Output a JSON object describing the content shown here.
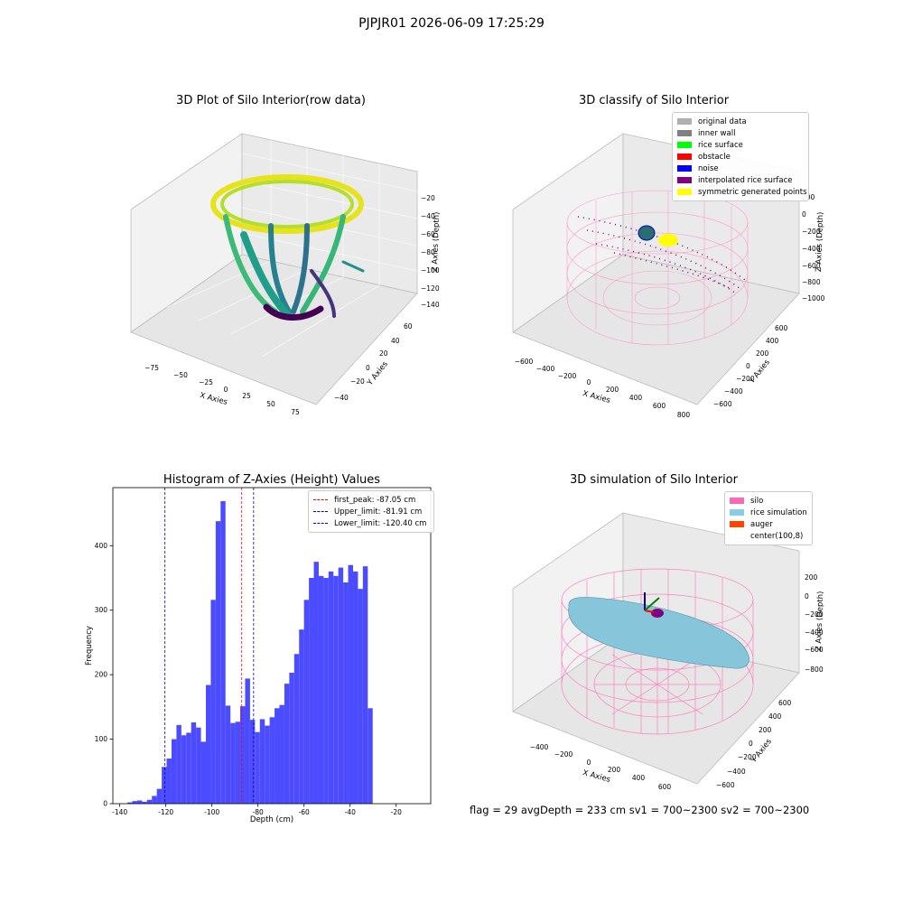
{
  "suptitle": "PJPJR01 2026-06-09 17:25:29",
  "footer": "flag = 29  avgDepth = 233 cm  sv1 = 700~2300  sv2 = 700~2300",
  "chart_data": [
    {
      "type": "scatter",
      "subtype": "3d-point-cloud",
      "title": "3D Plot of Silo Interior(row data)",
      "xlabel": "X Axies",
      "ylabel": "Y Axies",
      "zlabel": "Z Axies (Depth)",
      "x_ticks": [
        "−75",
        "−50",
        "−25",
        "0",
        "25",
        "50",
        "75"
      ],
      "y_ticks": [
        "−40",
        "−20",
        "0",
        "20",
        "40",
        "60"
      ],
      "z_ticks": [
        "−20",
        "−40",
        "−60",
        "−80",
        "−100",
        "−120",
        "−140"
      ],
      "colormap": "viridis"
    },
    {
      "type": "scatter",
      "subtype": "3d-classification",
      "title": "3D classify of Silo Interior",
      "xlabel": "X Axies",
      "ylabel": "Y Axies",
      "zlabel": "Z Axies (Depth)",
      "x_ticks": [
        "−600",
        "−400",
        "−200",
        "0",
        "200",
        "400",
        "600",
        "800"
      ],
      "y_ticks": [
        "−600",
        "−400",
        "−200",
        "0",
        "200",
        "400",
        "600"
      ],
      "z_ticks": [
        "200",
        "0",
        "−200",
        "−400",
        "−600",
        "−800",
        "−1000"
      ],
      "legend": [
        {
          "label": "original data",
          "color": "#b0b0b0"
        },
        {
          "label": "inner wall",
          "color": "#808080"
        },
        {
          "label": "rice surface",
          "color": "#00ff00"
        },
        {
          "label": "obstacle",
          "color": "#ff0000"
        },
        {
          "label": "noise",
          "color": "#0000ff"
        },
        {
          "label": "interpolated rice surface",
          "color": "#800080"
        },
        {
          "label": "symmetric generated points",
          "color": "#ffff00"
        }
      ]
    },
    {
      "type": "bar",
      "subtype": "histogram",
      "title": "Histogram of Z-Axies (Height) Values",
      "xlabel": "Depth (cm)",
      "ylabel": "Frequency",
      "xlim": [
        -143,
        -5
      ],
      "ylim": [
        0,
        490
      ],
      "x_ticks": [
        -140,
        -120,
        -100,
        -80,
        -60,
        -40,
        -20
      ],
      "y_ticks": [
        0,
        100,
        200,
        300,
        400
      ],
      "bin_start": -136.7,
      "bin_width": 2.13,
      "values": [
        2,
        4,
        5,
        3,
        6,
        12,
        23,
        57,
        70,
        100,
        122,
        106,
        110,
        126,
        118,
        96,
        184,
        316,
        438,
        469,
        152,
        125,
        127,
        151,
        194,
        130,
        111,
        131,
        121,
        134,
        148,
        153,
        186,
        203,
        232,
        270,
        316,
        350,
        375,
        353,
        350,
        360,
        353,
        366,
        343,
        370,
        360,
        333,
        368,
        148
      ],
      "bar_color": "#4b4bff",
      "lines": [
        {
          "label": "first_peak: -87.05 cm",
          "x": -87.05,
          "color": "#ff0000"
        },
        {
          "label": "Upper_limit: -81.91 cm",
          "x": -81.91,
          "color": "#0000cc"
        },
        {
          "label": "Lower_limit: -120.40 cm",
          "x": -120.4,
          "color": "#0000cc"
        }
      ]
    },
    {
      "type": "scatter",
      "subtype": "3d-simulation",
      "title": "3D simulation of Silo Interior",
      "xlabel": "X Axies",
      "ylabel": "Y Axies",
      "zlabel": "Z Axies (Depth)",
      "x_ticks": [
        "−400",
        "−200",
        "0",
        "200",
        "400",
        "600"
      ],
      "y_ticks": [
        "−600",
        "−400",
        "−200",
        "0",
        "200",
        "400",
        "600"
      ],
      "z_ticks": [
        "200",
        "0",
        "−200",
        "−400",
        "−600",
        "−800"
      ],
      "legend": [
        {
          "label": "silo",
          "color": "#ff69b4"
        },
        {
          "label": "rice simulation",
          "color": "#87ceeb"
        },
        {
          "label": "auger",
          "color": "#ff4500"
        },
        {
          "label": "center(100,8)",
          "color": ""
        }
      ]
    }
  ]
}
